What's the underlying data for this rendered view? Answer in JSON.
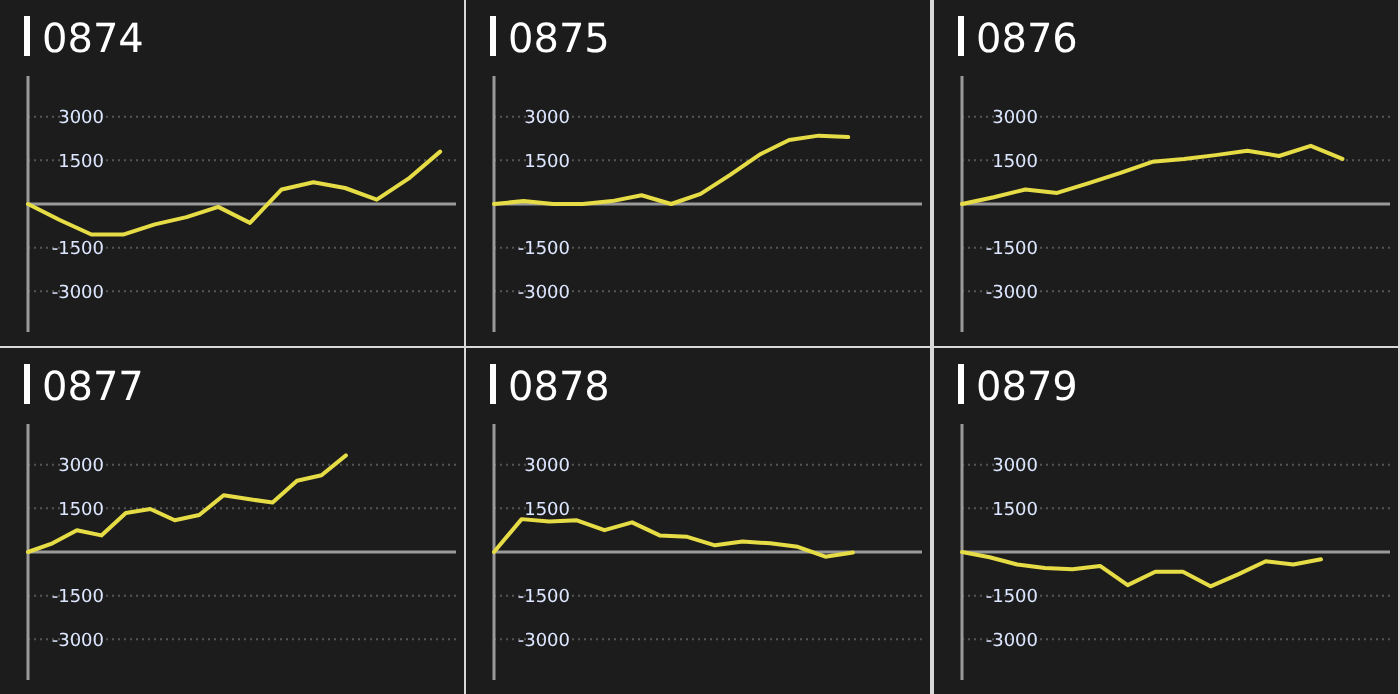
{
  "chart_data": [
    {
      "type": "line",
      "title": "0874",
      "categories": [
        null,
        null,
        null,
        null,
        null,
        null,
        null,
        null,
        null,
        null,
        null,
        null,
        null,
        null
      ],
      "ylim": [
        -4400,
        4400
      ],
      "yticks": [
        -3000,
        -1500,
        1500,
        3000
      ],
      "grid": "y",
      "series": [
        {
          "color": "#e6dc46",
          "values": [
            0,
            -550,
            -1050,
            -1050,
            -700,
            -450,
            -100,
            -650,
            500,
            750,
            550,
            150,
            870,
            1800
          ]
        }
      ]
    },
    {
      "type": "line",
      "title": "0875",
      "categories": [
        null,
        null,
        null,
        null,
        null,
        null,
        null,
        null,
        null,
        null,
        null,
        null,
        null,
        null,
        null
      ],
      "ylim": [
        -4400,
        4400
      ],
      "yticks": [
        -3000,
        -1500,
        1500,
        3000
      ],
      "grid": "y",
      "series": [
        {
          "color": "#e6dc46",
          "values": [
            0,
            100,
            0,
            0,
            100,
            300,
            0,
            350,
            1000,
            1700,
            2200,
            2350,
            2300,
            null,
            null
          ]
        }
      ]
    },
    {
      "type": "line",
      "title": "0876",
      "categories": [
        null,
        null,
        null,
        null,
        null,
        null,
        null,
        null,
        null,
        null,
        null,
        null,
        null,
        null
      ],
      "ylim": [
        -4400,
        4400
      ],
      "yticks": [
        -3000,
        -1500,
        1500,
        3000
      ],
      "grid": "y",
      "series": [
        {
          "color": "#e6dc46",
          "values": [
            0,
            230,
            500,
            380,
            720,
            1070,
            1450,
            1550,
            1680,
            1830,
            1650,
            2000,
            1550,
            null
          ]
        }
      ]
    },
    {
      "type": "line",
      "title": "0877",
      "categories": [
        null,
        null,
        null,
        null,
        null,
        null,
        null,
        null,
        null,
        null,
        null,
        null,
        null,
        null,
        null,
        null,
        null,
        null
      ],
      "ylim": [
        -4400,
        4400
      ],
      "yticks": [
        -3000,
        -1500,
        1500,
        3000
      ],
      "grid": "y",
      "series": [
        {
          "color": "#e6dc46",
          "values": [
            0,
            300,
            750,
            570,
            1340,
            1480,
            1090,
            1270,
            1950,
            1820,
            1700,
            2450,
            2640,
            3320,
            null,
            null,
            null,
            null
          ]
        }
      ]
    },
    {
      "type": "line",
      "title": "0878",
      "categories": [
        null,
        null,
        null,
        null,
        null,
        null,
        null,
        null,
        null,
        null,
        null,
        null,
        null,
        null,
        null,
        null
      ],
      "ylim": [
        -4400,
        4400
      ],
      "yticks": [
        -3000,
        -1500,
        1500,
        3000
      ],
      "grid": "y",
      "series": [
        {
          "color": "#e6dc46",
          "values": [
            0,
            1130,
            1050,
            1090,
            750,
            1020,
            570,
            520,
            230,
            360,
            300,
            180,
            -160,
            -20,
            null,
            null
          ]
        }
      ]
    },
    {
      "type": "line",
      "title": "0879",
      "categories": [
        null,
        null,
        null,
        null,
        null,
        null,
        null,
        null,
        null,
        null,
        null,
        null,
        null,
        null,
        null,
        null
      ],
      "ylim": [
        -4400,
        4400
      ],
      "yticks": [
        -3000,
        -1500,
        1500,
        3000
      ],
      "grid": "y",
      "series": [
        {
          "color": "#e6dc46",
          "values": [
            0,
            -180,
            -430,
            -550,
            -590,
            -480,
            -1140,
            -680,
            -680,
            -1180,
            -770,
            -320,
            -430,
            -250,
            null,
            null
          ]
        }
      ]
    }
  ]
}
